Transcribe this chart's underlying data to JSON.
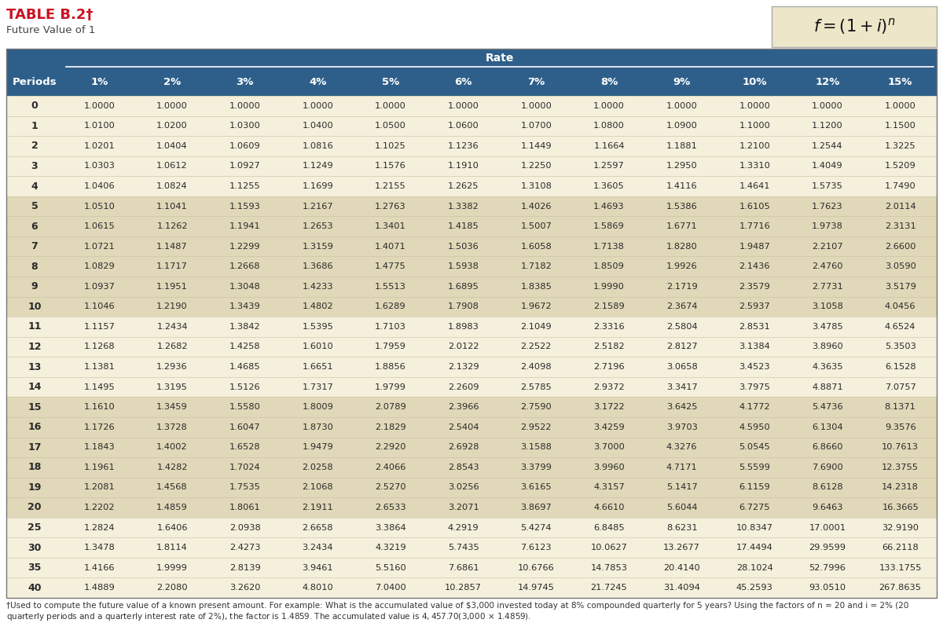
{
  "title": "TABLE B.2†",
  "subtitle": "Future Value of 1",
  "header_bg": "#2E5F8A",
  "header_text": "#FFFFFF",
  "light_row_bg": "#F5F0DC",
  "dark_row_bg": "#E0D8B8",
  "formula_bg": "#EDE6C8",
  "columns": [
    "Periods",
    "1%",
    "2%",
    "3%",
    "4%",
    "5%",
    "6%",
    "7%",
    "8%",
    "9%",
    "10%",
    "12%",
    "15%"
  ],
  "rows": [
    [
      0,
      1.0,
      1.0,
      1.0,
      1.0,
      1.0,
      1.0,
      1.0,
      1.0,
      1.0,
      1.0,
      1.0,
      1.0
    ],
    [
      1,
      1.01,
      1.02,
      1.03,
      1.04,
      1.05,
      1.06,
      1.07,
      1.08,
      1.09,
      1.1,
      1.12,
      1.15
    ],
    [
      2,
      1.0201,
      1.0404,
      1.0609,
      1.0816,
      1.1025,
      1.1236,
      1.1449,
      1.1664,
      1.1881,
      1.21,
      1.2544,
      1.3225
    ],
    [
      3,
      1.0303,
      1.0612,
      1.0927,
      1.1249,
      1.1576,
      1.191,
      1.225,
      1.2597,
      1.295,
      1.331,
      1.4049,
      1.5209
    ],
    [
      4,
      1.0406,
      1.0824,
      1.1255,
      1.1699,
      1.2155,
      1.2625,
      1.3108,
      1.3605,
      1.4116,
      1.4641,
      1.5735,
      1.749
    ],
    [
      5,
      1.051,
      1.1041,
      1.1593,
      1.2167,
      1.2763,
      1.3382,
      1.4026,
      1.4693,
      1.5386,
      1.6105,
      1.7623,
      2.0114
    ],
    [
      6,
      1.0615,
      1.1262,
      1.1941,
      1.2653,
      1.3401,
      1.4185,
      1.5007,
      1.5869,
      1.6771,
      1.7716,
      1.9738,
      2.3131
    ],
    [
      7,
      1.0721,
      1.1487,
      1.2299,
      1.3159,
      1.4071,
      1.5036,
      1.6058,
      1.7138,
      1.828,
      1.9487,
      2.2107,
      2.66
    ],
    [
      8,
      1.0829,
      1.1717,
      1.2668,
      1.3686,
      1.4775,
      1.5938,
      1.7182,
      1.8509,
      1.9926,
      2.1436,
      2.476,
      3.059
    ],
    [
      9,
      1.0937,
      1.1951,
      1.3048,
      1.4233,
      1.5513,
      1.6895,
      1.8385,
      1.999,
      2.1719,
      2.3579,
      2.7731,
      3.5179
    ],
    [
      10,
      1.1046,
      1.219,
      1.3439,
      1.4802,
      1.6289,
      1.7908,
      1.9672,
      2.1589,
      2.3674,
      2.5937,
      3.1058,
      4.0456
    ],
    [
      11,
      1.1157,
      1.2434,
      1.3842,
      1.5395,
      1.7103,
      1.8983,
      2.1049,
      2.3316,
      2.5804,
      2.8531,
      3.4785,
      4.6524
    ],
    [
      12,
      1.1268,
      1.2682,
      1.4258,
      1.601,
      1.7959,
      2.0122,
      2.2522,
      2.5182,
      2.8127,
      3.1384,
      3.896,
      5.3503
    ],
    [
      13,
      1.1381,
      1.2936,
      1.4685,
      1.6651,
      1.8856,
      2.1329,
      2.4098,
      2.7196,
      3.0658,
      3.4523,
      4.3635,
      6.1528
    ],
    [
      14,
      1.1495,
      1.3195,
      1.5126,
      1.7317,
      1.9799,
      2.2609,
      2.5785,
      2.9372,
      3.3417,
      3.7975,
      4.8871,
      7.0757
    ],
    [
      15,
      1.161,
      1.3459,
      1.558,
      1.8009,
      2.0789,
      2.3966,
      2.759,
      3.1722,
      3.6425,
      4.1772,
      5.4736,
      8.1371
    ],
    [
      16,
      1.1726,
      1.3728,
      1.6047,
      1.873,
      2.1829,
      2.5404,
      2.9522,
      3.4259,
      3.9703,
      4.595,
      6.1304,
      9.3576
    ],
    [
      17,
      1.1843,
      1.4002,
      1.6528,
      1.9479,
      2.292,
      2.6928,
      3.1588,
      3.7,
      4.3276,
      5.0545,
      6.866,
      10.7613
    ],
    [
      18,
      1.1961,
      1.4282,
      1.7024,
      2.0258,
      2.4066,
      2.8543,
      3.3799,
      3.996,
      4.7171,
      5.5599,
      7.69,
      12.3755
    ],
    [
      19,
      1.2081,
      1.4568,
      1.7535,
      2.1068,
      2.527,
      3.0256,
      3.6165,
      4.3157,
      5.1417,
      6.1159,
      8.6128,
      14.2318
    ],
    [
      20,
      1.2202,
      1.4859,
      1.8061,
      2.1911,
      2.6533,
      3.2071,
      3.8697,
      4.661,
      5.6044,
      6.7275,
      9.6463,
      16.3665
    ],
    [
      25,
      1.2824,
      1.6406,
      2.0938,
      2.6658,
      3.3864,
      4.2919,
      5.4274,
      6.8485,
      8.6231,
      10.8347,
      17.0001,
      32.919
    ],
    [
      30,
      1.3478,
      1.8114,
      2.4273,
      3.2434,
      4.3219,
      5.7435,
      7.6123,
      10.0627,
      13.2677,
      17.4494,
      29.9599,
      66.2118
    ],
    [
      35,
      1.4166,
      1.9999,
      2.8139,
      3.9461,
      5.516,
      7.6861,
      10.6766,
      14.7853,
      20.414,
      28.1024,
      52.7996,
      133.1755
    ],
    [
      40,
      1.4889,
      2.208,
      3.262,
      4.801,
      7.04,
      10.2857,
      14.9745,
      21.7245,
      31.4094,
      45.2593,
      93.051,
      267.8635
    ]
  ],
  "dark_row_indices": [
    5,
    6,
    7,
    8,
    9,
    10,
    15,
    16,
    17,
    18,
    19,
    20
  ],
  "footer_text": "†Used to compute the future value of a known present amount. For example: What is the accumulated value of $3,000 invested today at 8% compounded quarterly for 5 years? Using the factors of n = 20 and i = 2% (20 quarterly periods and a quarterly interest rate of 2%), the factor is 1.4859. The accumulated value is $4,457.70 ($3,000 × 1.4859)."
}
